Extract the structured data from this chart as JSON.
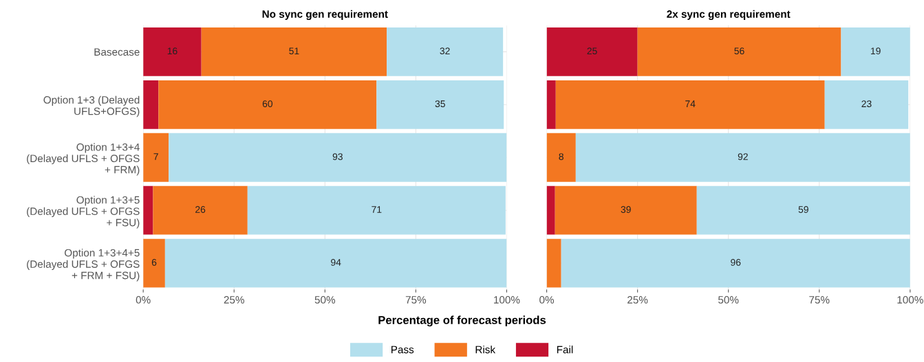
{
  "chart_data": [
    {
      "type": "bar",
      "orientation": "horizontal",
      "stacked": true,
      "title": "No sync gen requirement",
      "xlabel": "Percentage of forecast periods",
      "categories": [
        "Basecase",
        "Option 1+3 (Delayed\nUFLS+OFGS)",
        "Option 1+3+4\n(Delayed UFLS + OFGS\n+ FRM)",
        "Option 1+3+5\n(Delayed UFLS + OFGS\n+ FSU)",
        "Option 1+3+4+5\n(Delayed UFLS + OFGS\n+ FRM + FSU)"
      ],
      "series": [
        {
          "name": "Fail",
          "color": "#c41230",
          "values": [
            16,
            4.2,
            0,
            2.7,
            0
          ],
          "value_labels": [
            "16",
            null,
            null,
            null,
            null
          ]
        },
        {
          "name": "Risk",
          "color": "#f37721",
          "values": [
            51,
            60,
            7,
            26,
            6
          ],
          "value_labels": [
            "51",
            "60",
            "7",
            "26",
            "6"
          ]
        },
        {
          "name": "Pass",
          "color": "#b3dfed",
          "values": [
            32,
            35,
            93,
            71,
            94
          ],
          "value_labels": [
            "32",
            "35",
            "93",
            "71",
            "94"
          ]
        }
      ],
      "xlim": [
        0,
        100
      ],
      "xticks": [
        {
          "value": 0,
          "label": "0%"
        },
        {
          "value": 25,
          "label": "25%"
        },
        {
          "value": 50,
          "label": "50%"
        },
        {
          "value": 75,
          "label": "75%"
        },
        {
          "value": 100,
          "label": "100%"
        }
      ],
      "grid": true,
      "legend": "bottom"
    },
    {
      "type": "bar",
      "orientation": "horizontal",
      "stacked": true,
      "title": "2x sync gen requirement",
      "series": [
        {
          "color": "#c41230",
          "values": [
            25,
            2.5,
            0,
            2.3,
            0
          ],
          "value_labels": [
            "25",
            null,
            null,
            null,
            null
          ]
        },
        {
          "color": "#f37721",
          "values": [
            56,
            74,
            8,
            39,
            4
          ],
          "value_labels": [
            "56",
            "74",
            "8",
            "39",
            null
          ]
        },
        {
          "color": "#b3dfed",
          "values": [
            19,
            23,
            92,
            59,
            96
          ],
          "value_labels": [
            "19",
            "23",
            "92",
            "59",
            "96"
          ]
        }
      ],
      "xlim": [
        0,
        100
      ],
      "xticks": [
        {
          "value": 0,
          "label": "0%"
        },
        {
          "value": 25,
          "label": "25%"
        },
        {
          "value": 50,
          "label": "50%"
        },
        {
          "value": 75,
          "label": "75%"
        },
        {
          "value": 100,
          "label": "100%"
        }
      ],
      "grid": true,
      "tick_labels": "x"
    }
  ]
}
